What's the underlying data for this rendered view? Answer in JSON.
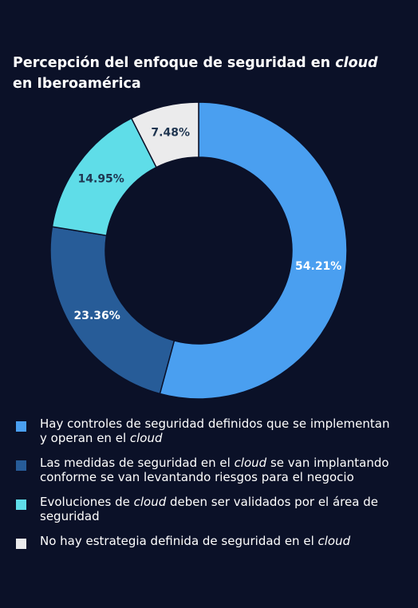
{
  "title_parts": [
    "Percepción del enfoque de seguridad en ",
    "cloud",
    " en Iberoamérica"
  ],
  "chart_data": {
    "type": "pie",
    "donut": true,
    "categories": [
      "Hay controles de seguridad definidos que se implementan y operan en el cloud",
      "Las medidas de seguridad en el cloud se van implantando conforme se van levantando riesgos para el negocio",
      "Evoluciones de cloud deben ser validados por el área de seguridad",
      "No hay estrategia definida de seguridad en el cloud"
    ],
    "values": [
      54.21,
      23.36,
      14.95,
      7.48
    ],
    "data_labels": [
      "54.21%",
      "23.36%",
      "14.95%",
      "7.48%"
    ],
    "colors": [
      "#4a9ff0",
      "#275c98",
      "#5fdde8",
      "#ebebec"
    ],
    "label_colors": [
      "#ffffff",
      "#ffffff",
      "#1f3550",
      "#1f3550"
    ],
    "legend_position": "bottom"
  },
  "legend": [
    {
      "parts": [
        "Hay controles de seguridad definidos que se implementan y operan en el ",
        "cloud",
        ""
      ]
    },
    {
      "parts": [
        "Las medidas de seguridad en el ",
        "cloud",
        " se van implantando conforme se van levantando riesgos para el negocio"
      ]
    },
    {
      "parts": [
        "Evoluciones de ",
        "cloud",
        " deben ser validados por el área de seguridad"
      ]
    },
    {
      "parts": [
        "No hay estrategia definida de seguridad en el ",
        "cloud",
        ""
      ]
    }
  ]
}
